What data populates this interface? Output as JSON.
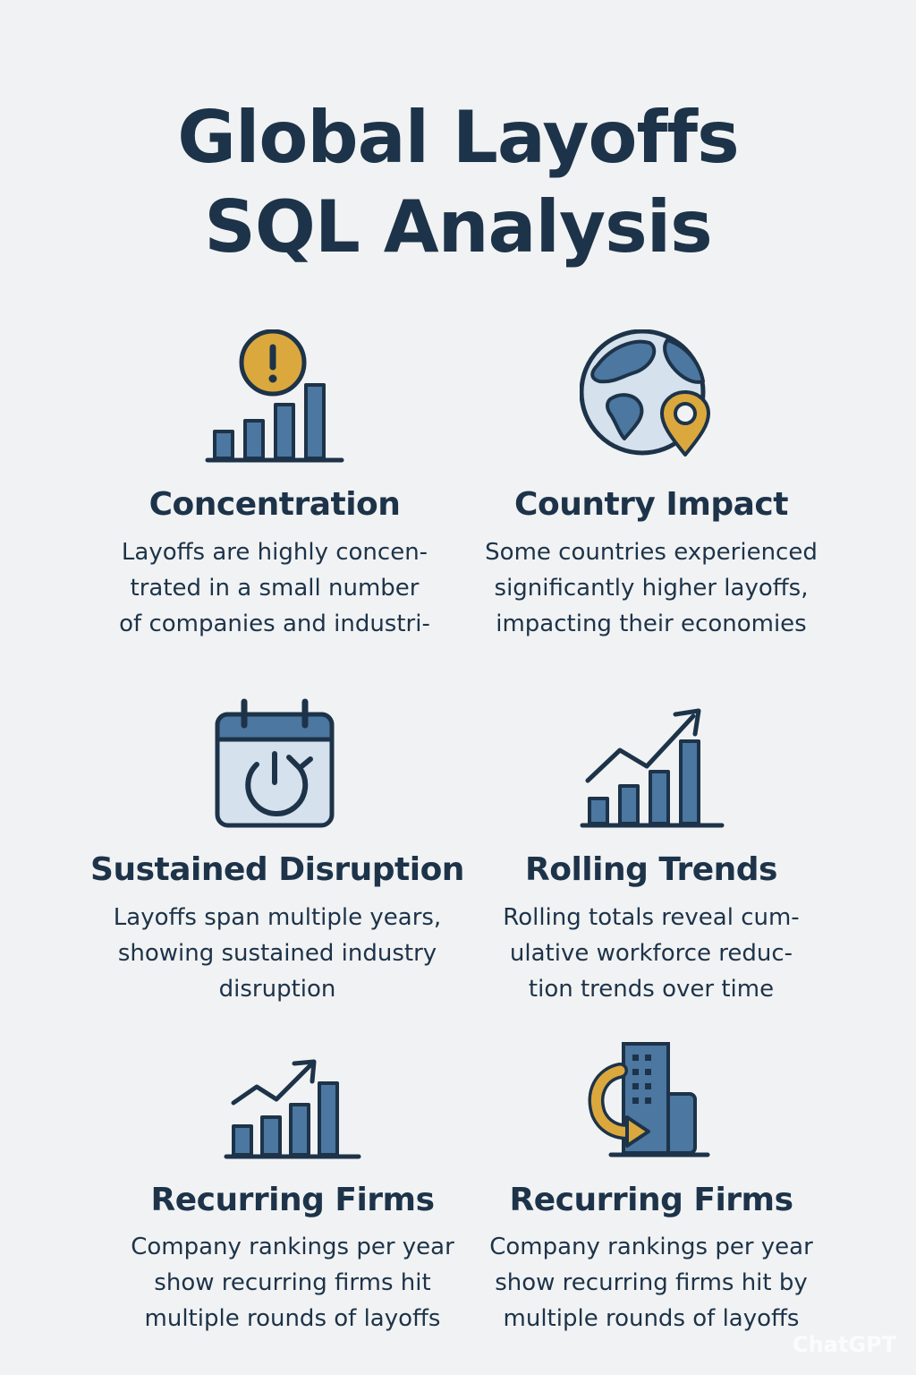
{
  "title": {
    "line1": "Global Layoffs",
    "line2": "SQL Analysis"
  },
  "colors": {
    "navy": "#1d3349",
    "blue": "#4b77a0",
    "light": "#d5e1ec",
    "gold": "#dba83d",
    "background": "#f1f2f3"
  },
  "cards": [
    {
      "heading": "Concentration",
      "text": [
        "Layoffs are highly concen-",
        "trated in a small number",
        "of companies and industri-"
      ],
      "icon": "alert-bar-chart-icon"
    },
    {
      "heading": "Country Impact",
      "text": [
        "Some countries experienced",
        "significantly higher layoffs,",
        "impacting their economies"
      ],
      "icon": "globe-pin-icon"
    },
    {
      "heading": "Sustained Disruption",
      "text": [
        "Layoffs span multiple years,",
        "showing sustained industry",
        "disruption"
      ],
      "icon": "calendar-power-icon"
    },
    {
      "heading": "Rolling Trends",
      "text": [
        "Rolling totals reveal cum-",
        "ulative workforce reduc-",
        "tion trends over time"
      ],
      "icon": "trend-bar-chart-icon"
    },
    {
      "heading": "Recurring Firms",
      "text": [
        "Company rankings per year",
        "show recurring firms hit",
        "multiple rounds of layoffs"
      ],
      "icon": "trend-bar-chart-icon"
    },
    {
      "heading": "Recurring Firms",
      "text": [
        "Company rankings per year",
        "show recurring firms hit by",
        "multiple rounds of layoffs"
      ],
      "icon": "building-cycle-icon"
    }
  ],
  "watermark": "ChatGPT"
}
